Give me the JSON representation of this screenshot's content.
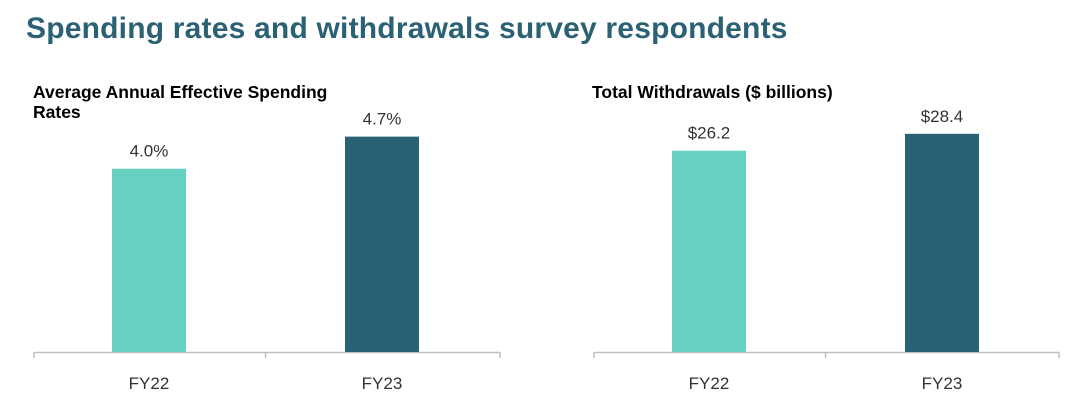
{
  "page": {
    "title": "Spending rates and withdrawals survey respondents"
  },
  "colors": {
    "title": "#2b6175",
    "fy22_bar": "#66d1c1",
    "fy23_bar": "#2b6175",
    "axis": "#bfbfbf",
    "label": "#333333"
  },
  "chart_data": [
    {
      "type": "bar",
      "title": "Average Annual Effective Spending Rates",
      "categories": [
        "FY22",
        "FY23"
      ],
      "values": [
        4.0,
        4.7
      ],
      "data_labels": [
        "4.0%",
        "4.7%"
      ],
      "ylim": [
        0,
        5.5
      ],
      "grid": false,
      "legend": "none"
    },
    {
      "type": "bar",
      "title": "Total Withdrawals ($ billions)",
      "categories": [
        "FY22",
        "FY23"
      ],
      "values": [
        26.2,
        28.4
      ],
      "data_labels": [
        "$26.2",
        "$28.4"
      ],
      "ylim": [
        0,
        32.8
      ],
      "grid": false,
      "legend": "none"
    }
  ]
}
